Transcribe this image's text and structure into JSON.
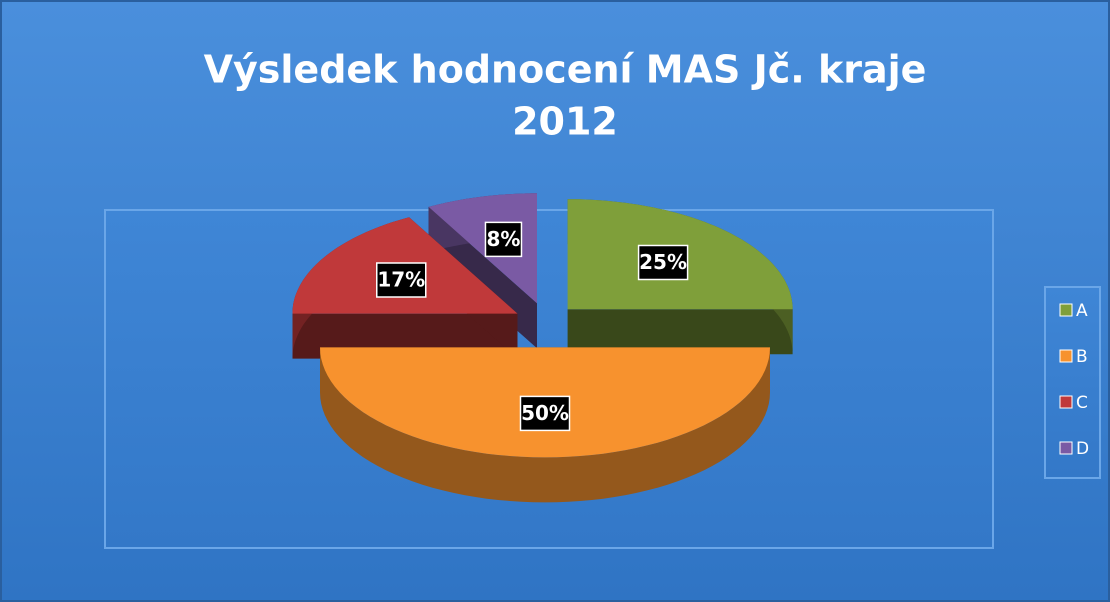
{
  "chart_data": {
    "type": "pie",
    "title": [
      "Výsledek hodnocení MAS Jč. kraje",
      "2012"
    ],
    "categories": [
      "A",
      "B",
      "C",
      "D"
    ],
    "values": [
      25,
      50,
      17,
      8
    ],
    "value_labels": [
      "25%",
      "50%",
      "17%",
      "8%"
    ],
    "colors": [
      "#7f9f3a",
      "#f7922e",
      "#c0393a",
      "#7a5aa4"
    ],
    "legend": "right"
  }
}
